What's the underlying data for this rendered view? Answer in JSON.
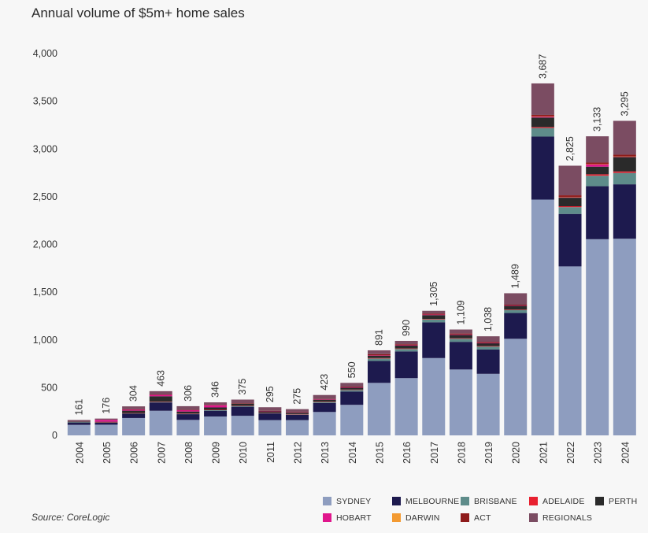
{
  "title": "Annual volume of $5m+ home sales",
  "source": "Source: CoreLogic",
  "chart_data": {
    "type": "bar",
    "stacked": true,
    "title": "Annual volume of $5m+ home sales",
    "xlabel": "",
    "ylabel": "",
    "ylim": [
      0,
      4000
    ],
    "yticks": [
      0,
      500,
      1000,
      1500,
      2000,
      2500,
      3000,
      3500,
      4000
    ],
    "ytick_labels": [
      "0",
      "500",
      "1,000",
      "1,500",
      "2,000",
      "2,500",
      "3,000",
      "3,500",
      "4,000"
    ],
    "categories": [
      "2004",
      "2005",
      "2006",
      "2007",
      "2008",
      "2009",
      "2010",
      "2011",
      "2012",
      "2013",
      "2014",
      "2015",
      "2016",
      "2017",
      "2018",
      "2019",
      "2020",
      "2021",
      "2022",
      "2023",
      "2024"
    ],
    "totals": [
      161,
      176,
      304,
      463,
      306,
      346,
      375,
      295,
      275,
      423,
      550,
      891,
      990,
      1305,
      1109,
      1038,
      1489,
      3687,
      2825,
      3133,
      3295
    ],
    "total_labels": [
      "161",
      "176",
      "304",
      "463",
      "306",
      "346",
      "375",
      "295",
      "275",
      "423",
      "550",
      "891",
      "990",
      "1,305",
      "1,109",
      "1,038",
      "1,489",
      "3,687",
      "2,825",
      "3,133",
      "3,295"
    ],
    "series": [
      {
        "name": "SYDNEY",
        "color": "#8e9dbf",
        "values": [
          110,
          112,
          182,
          258,
          162,
          198,
          205,
          160,
          160,
          245,
          320,
          550,
          600,
          810,
          690,
          645,
          1012,
          2470,
          1770,
          2055,
          2060
        ]
      },
      {
        "name": "MELBOURNE",
        "color": "#1d1a4e",
        "values": [
          25,
          22,
          45,
          87,
          60,
          60,
          95,
          70,
          55,
          95,
          140,
          230,
          280,
          375,
          290,
          255,
          270,
          660,
          550,
          555,
          570
        ]
      },
      {
        "name": "BRISBANE",
        "color": "#5e8c8a",
        "values": [
          3,
          3,
          5,
          8,
          6,
          8,
          10,
          6,
          8,
          12,
          18,
          25,
          25,
          30,
          32,
          30,
          30,
          90,
          70,
          110,
          120
        ]
      },
      {
        "name": "ADELAIDE",
        "color": "#e8202f",
        "values": [
          0,
          1,
          2,
          2,
          2,
          2,
          1,
          1,
          1,
          2,
          2,
          5,
          5,
          5,
          5,
          5,
          5,
          10,
          10,
          15,
          15
        ]
      },
      {
        "name": "PERTH",
        "color": "#2a2a2a",
        "values": [
          5,
          5,
          25,
          55,
          20,
          25,
          22,
          15,
          15,
          20,
          20,
          25,
          30,
          40,
          35,
          30,
          40,
          100,
          90,
          80,
          150
        ]
      },
      {
        "name": "HOBART",
        "color": "#e0168c",
        "values": [
          0,
          20,
          12,
          15,
          15,
          23,
          0,
          3,
          3,
          5,
          3,
          3,
          5,
          5,
          5,
          3,
          3,
          10,
          5,
          25,
          5
        ]
      },
      {
        "name": "DARWIN",
        "color": "#f39a32",
        "values": [
          0,
          0,
          0,
          0,
          0,
          0,
          0,
          0,
          0,
          0,
          0,
          0,
          0,
          0,
          0,
          0,
          0,
          2,
          2,
          2,
          2
        ]
      },
      {
        "name": "ACT",
        "color": "#8e1b1b",
        "values": [
          0,
          0,
          2,
          3,
          2,
          3,
          2,
          3,
          3,
          3,
          7,
          13,
          10,
          10,
          10,
          10,
          9,
          15,
          18,
          16,
          18
        ]
      },
      {
        "name": "REGIONALS",
        "color": "#7b4c62",
        "values": [
          18,
          13,
          31,
          35,
          39,
          27,
          40,
          37,
          30,
          41,
          40,
          40,
          35,
          30,
          42,
          60,
          120,
          330,
          310,
          275,
          355
        ]
      }
    ]
  }
}
